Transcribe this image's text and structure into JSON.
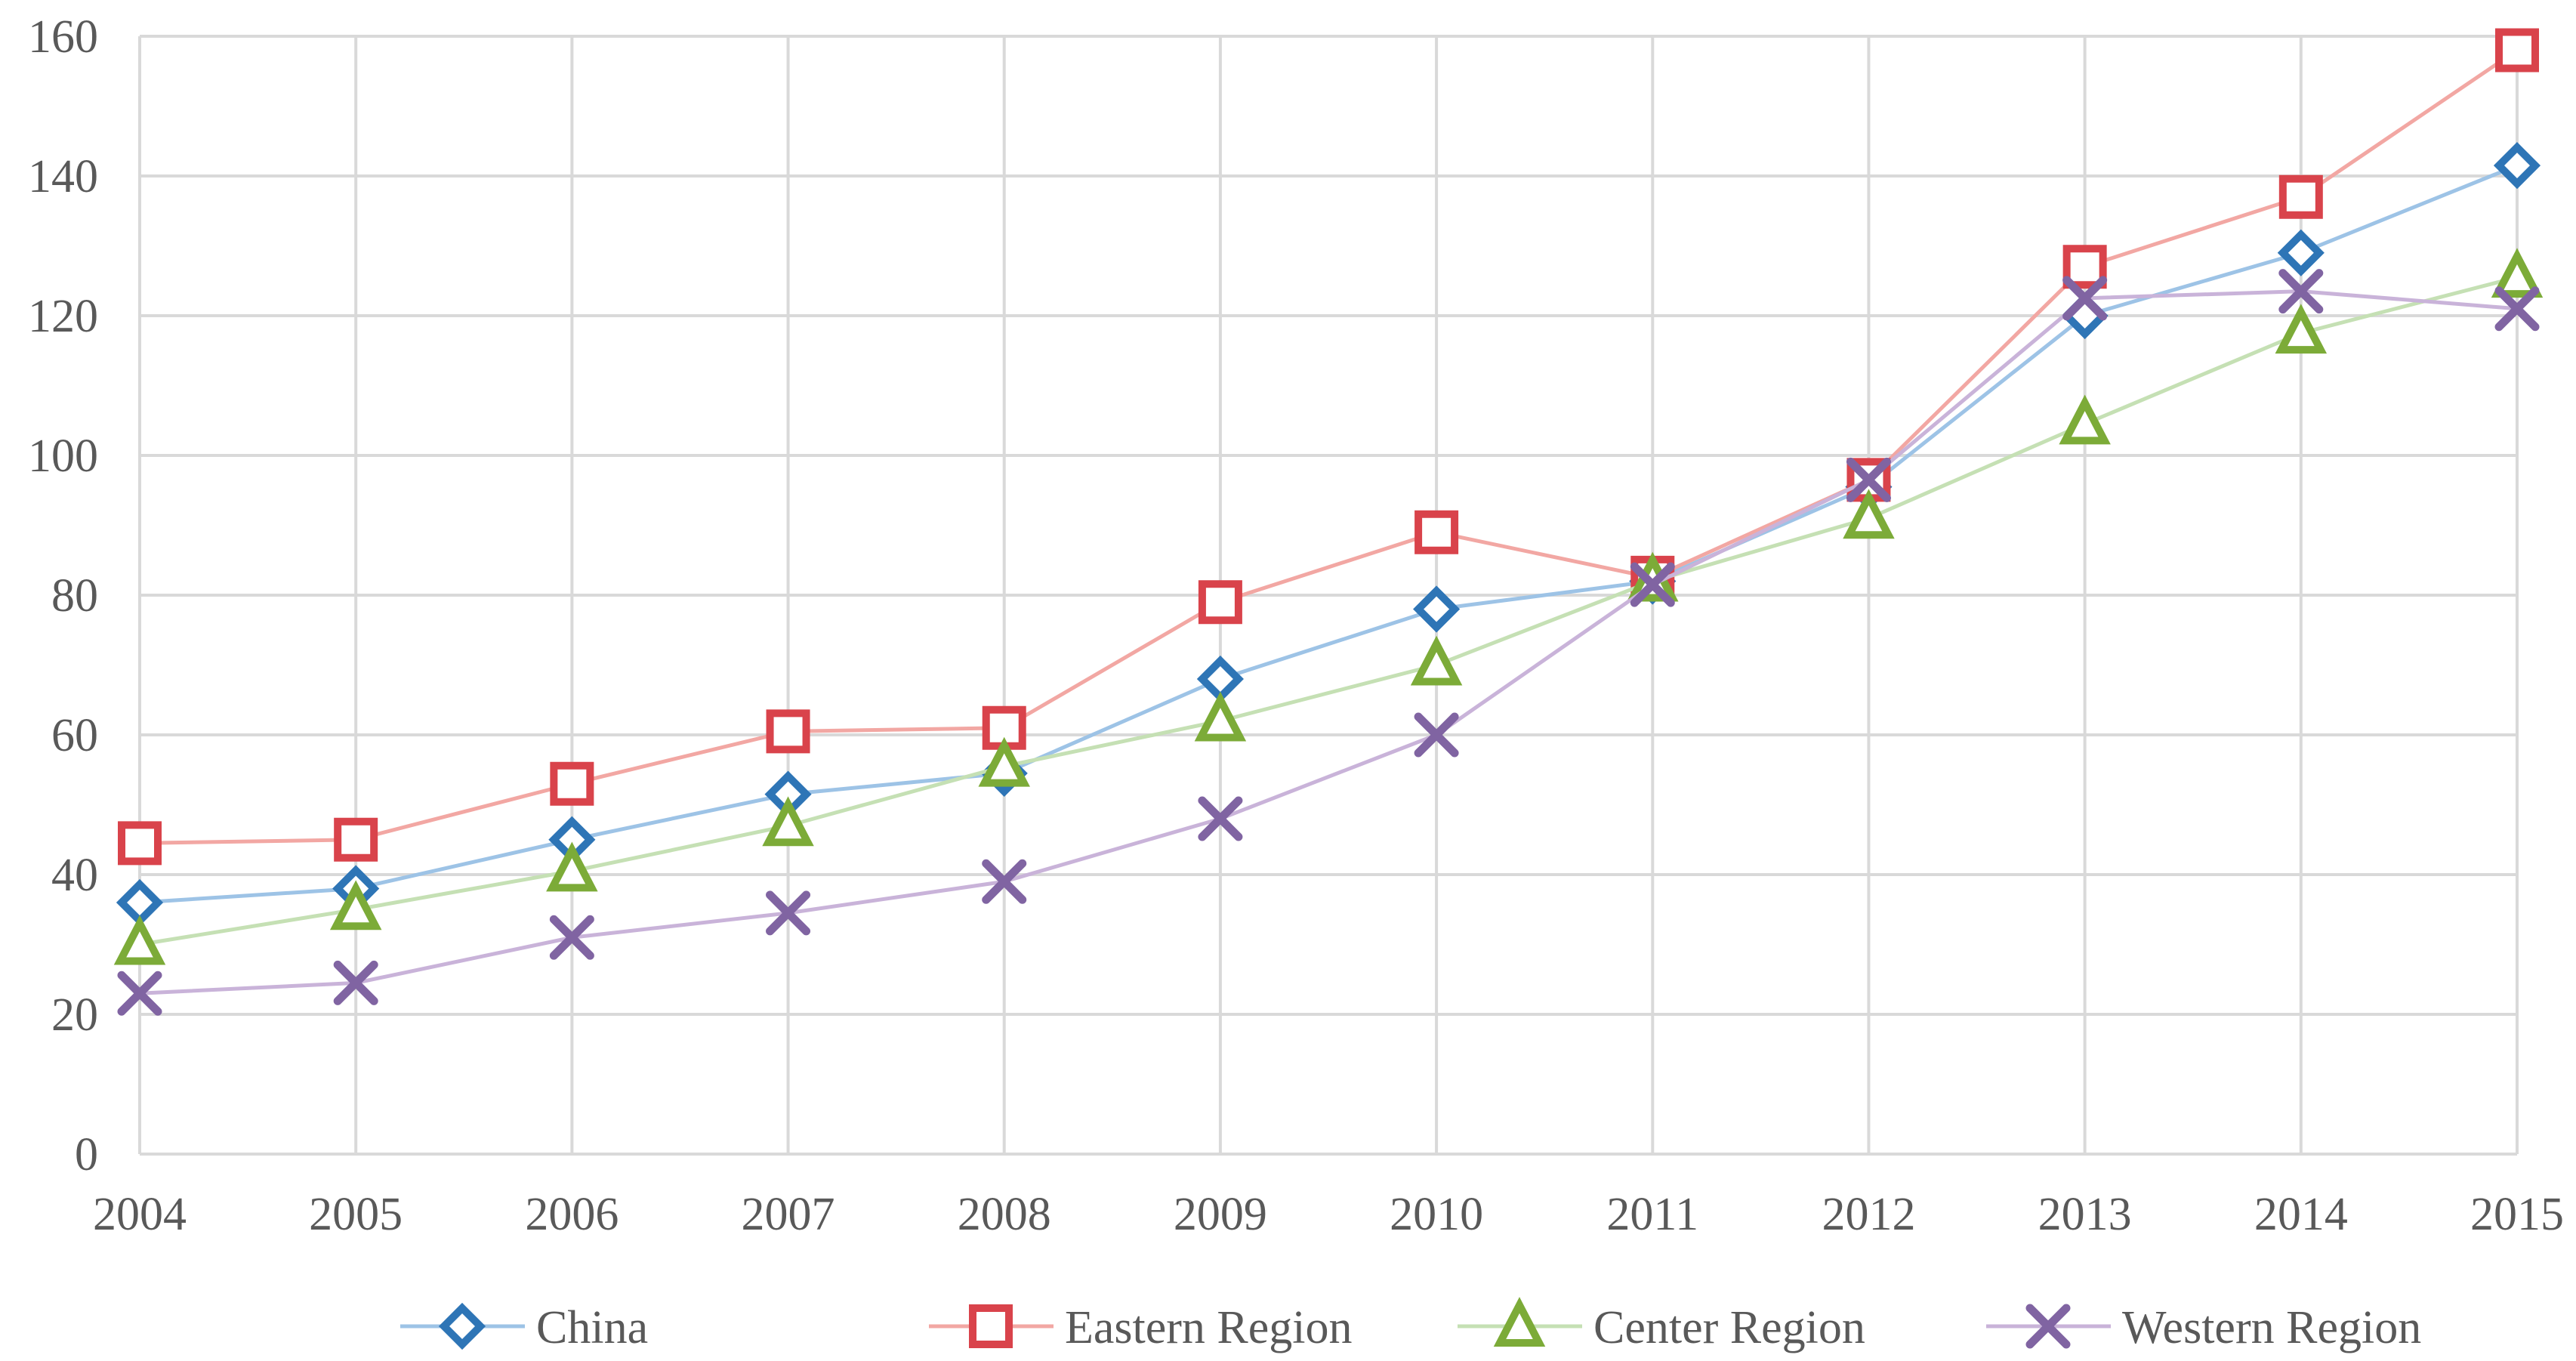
{
  "chart_data": {
    "type": "line",
    "title": "",
    "xlabel": "",
    "ylabel": "",
    "categories": [
      "2004",
      "2005",
      "2006",
      "2007",
      "2008",
      "2009",
      "2010",
      "2011",
      "2012",
      "2013",
      "2014",
      "2015"
    ],
    "ylim": [
      0,
      160
    ],
    "yticks": [
      0,
      20,
      40,
      60,
      80,
      100,
      120,
      140,
      160
    ],
    "grid": true,
    "legend_position": "bottom",
    "series": [
      {
        "name": "China",
        "marker": "diamond",
        "color": "#2e75b6",
        "line_color": "#9dc3e6",
        "values": [
          36,
          38,
          45,
          51.5,
          54.5,
          68,
          78,
          82,
          95.5,
          120,
          129,
          141.5
        ]
      },
      {
        "name": "Eastern Region",
        "marker": "square",
        "color": "#d9434b",
        "line_color": "#f2a7a3",
        "values": [
          44.5,
          45,
          53,
          60.5,
          61,
          79,
          89,
          82.5,
          96.5,
          127,
          137,
          158
        ]
      },
      {
        "name": "Center Region",
        "marker": "triangle",
        "color": "#7cab38",
        "line_color": "#c5e0b4",
        "values": [
          30,
          35,
          40.5,
          47,
          55.5,
          62,
          70,
          82,
          91,
          104.5,
          117.5,
          125.5
        ]
      },
      {
        "name": "Western Region",
        "marker": "x",
        "color": "#8064a2",
        "line_color": "#c9b3d9",
        "values": [
          23,
          24.5,
          31,
          34.5,
          39,
          48,
          60,
          81.5,
          96.5,
          122.5,
          123.5,
          121
        ]
      }
    ]
  }
}
